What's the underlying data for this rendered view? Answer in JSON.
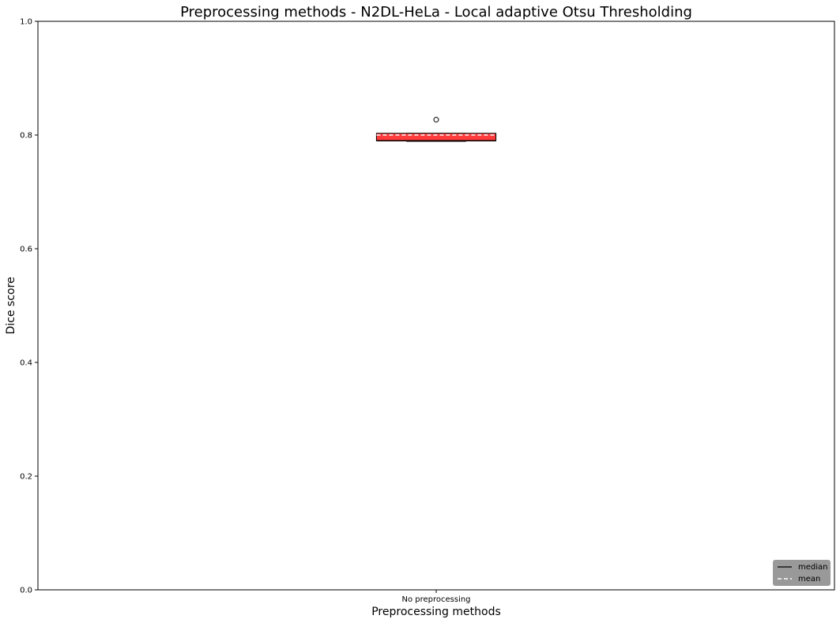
{
  "chart_data": {
    "type": "box",
    "title": "Preprocessing methods - N2DL-HeLa - Local adaptive Otsu Thresholding",
    "xlabel": "Preprocessing methods",
    "ylabel": "Dice score",
    "ylim": [
      0,
      1.0
    ],
    "yticks": [
      "0.0",
      "0.2",
      "0.4",
      "0.6",
      "0.8",
      "1.0"
    ],
    "categories": [
      "No preprocessing"
    ],
    "boxes": [
      {
        "category": "No preprocessing",
        "whisker_low": 0.789,
        "q1": 0.79,
        "median": 0.79,
        "mean": 0.8,
        "q3": 0.803,
        "whisker_high": 0.803,
        "outliers": [
          0.827
        ],
        "color": "#ff3b3b"
      }
    ],
    "legend": {
      "position": "bottom-right",
      "entries": [
        {
          "label": "median",
          "style": "solid",
          "color": "#000000"
        },
        {
          "label": "mean",
          "style": "dashed",
          "color": "#ffffff"
        }
      ],
      "background": "#999999"
    },
    "grid": false
  }
}
